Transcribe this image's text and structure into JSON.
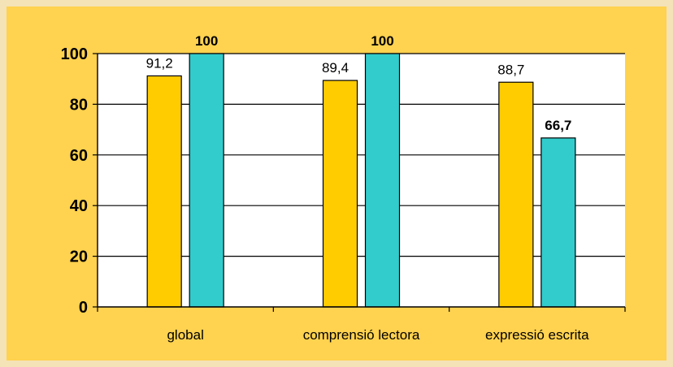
{
  "chart_data": {
    "type": "bar",
    "title": "",
    "xlabel": "",
    "ylabel": "",
    "categories": [
      "global",
      "comprensió lectora",
      "expressió escrita"
    ],
    "series": [
      {
        "color": "#ffcc00",
        "values": [
          91.2,
          89.4,
          88.7
        ],
        "labels": [
          "91,2",
          "89,4",
          "88,7"
        ],
        "label_bold": false
      },
      {
        "color": "#33cccc",
        "values": [
          100,
          100,
          66.7
        ],
        "labels": [
          "100",
          "100",
          "66,7"
        ],
        "label_bold": true
      }
    ],
    "ylim": [
      0,
      100
    ],
    "yticks": [
      0,
      20,
      40,
      60,
      80,
      100
    ],
    "ytick_labels": [
      "0",
      "20",
      "40",
      "60",
      "80",
      "100"
    ],
    "grid": true,
    "legend": "none",
    "plot_background": "#ffffff",
    "frame_background": "#ffd24f"
  }
}
